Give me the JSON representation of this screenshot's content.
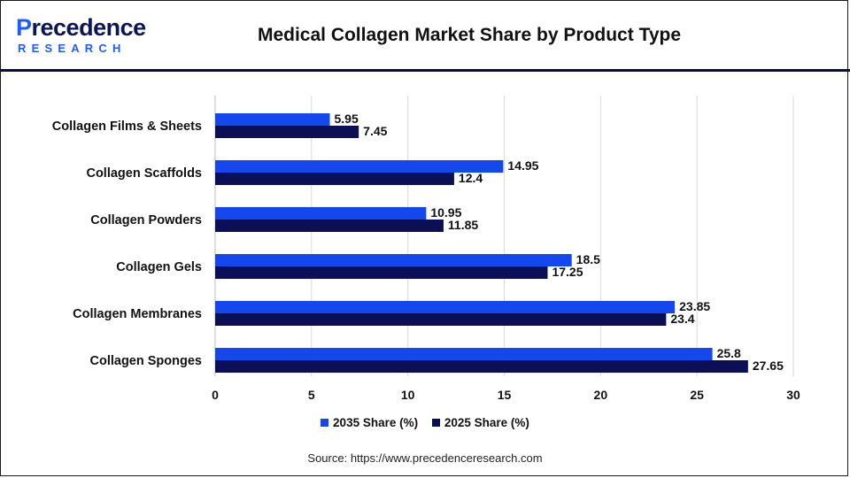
{
  "logo": {
    "text_main_accent": "P",
    "text_main_rest": "recedence",
    "text_sub": "RESEARCH"
  },
  "chart_data": {
    "type": "bar",
    "orientation": "horizontal",
    "title": "Medical Collagen Market Share by Product Type",
    "categories": [
      "Collagen Films & Sheets",
      "Collagen Scaffolds",
      "Collagen Powders",
      "Collagen Gels",
      "Collagen Membranes",
      "Collagen Sponges"
    ],
    "series": [
      {
        "name": "2035 Share (%)",
        "color": "#1447ee",
        "values": [
          5.95,
          14.95,
          10.95,
          18.5,
          23.85,
          25.8
        ]
      },
      {
        "name": "2025 Share (%)",
        "color": "#0b0f55",
        "values": [
          7.45,
          12.4,
          11.85,
          17.25,
          23.4,
          27.65
        ]
      }
    ],
    "xlim": [
      0,
      30
    ],
    "xticks": [
      "0",
      "5",
      "10",
      "15",
      "20",
      "25",
      "30"
    ],
    "grid": true,
    "legend_position": "bottom"
  },
  "source": "Source: https://www.precedenceresearch.com"
}
